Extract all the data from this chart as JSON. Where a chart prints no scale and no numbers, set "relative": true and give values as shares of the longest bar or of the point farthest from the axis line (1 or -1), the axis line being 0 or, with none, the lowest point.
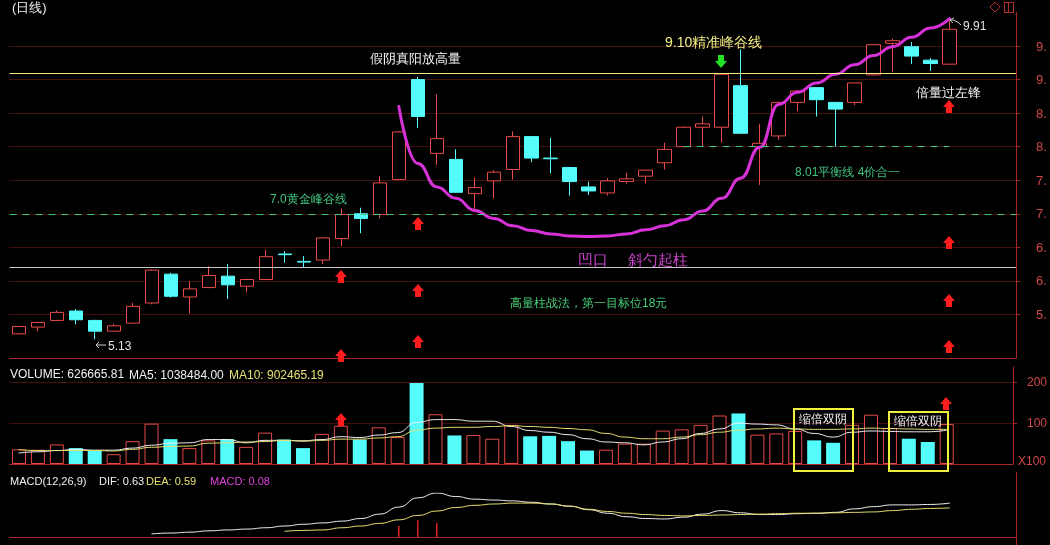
{
  "chart_data": [
    {
      "type": "candlestick",
      "title": "(日线)",
      "categories": [
        null,
        null,
        null,
        null,
        null,
        null,
        null,
        null,
        null,
        null,
        null,
        null,
        null,
        null,
        null,
        null,
        null,
        null,
        null,
        null,
        null,
        null,
        null,
        null,
        null,
        null,
        null,
        null,
        null,
        null,
        null,
        null,
        null,
        null,
        null,
        null,
        null,
        null,
        null,
        null,
        null,
        null,
        null,
        null,
        null,
        null,
        null,
        null,
        null,
        null
      ],
      "ohlc": [
        [
          5.21,
          5.33,
          5.2,
          5.32
        ],
        [
          5.31,
          5.39,
          5.25,
          5.38
        ],
        [
          5.41,
          5.56,
          5.4,
          5.53
        ],
        [
          5.55,
          5.58,
          5.35,
          5.42
        ],
        [
          5.41,
          5.42,
          5.13,
          5.25
        ],
        [
          5.25,
          5.36,
          5.24,
          5.33
        ],
        [
          5.37,
          5.67,
          5.36,
          5.62
        ],
        [
          5.67,
          6.17,
          5.65,
          6.16
        ],
        [
          6.1,
          6.12,
          5.75,
          5.77
        ],
        [
          5.76,
          5.99,
          5.51,
          5.88
        ],
        [
          5.9,
          6.22,
          5.89,
          6.08
        ],
        [
          6.07,
          6.25,
          5.73,
          5.94
        ],
        [
          5.92,
          6.03,
          5.83,
          6.02
        ],
        [
          6.02,
          6.46,
          6.01,
          6.36
        ],
        [
          6.4,
          6.44,
          6.27,
          6.39
        ],
        [
          6.29,
          6.37,
          6.2,
          6.28
        ],
        [
          6.31,
          6.65,
          6.25,
          6.64
        ],
        [
          6.63,
          7.08,
          6.52,
          6.99
        ],
        [
          7.0,
          7.09,
          6.71,
          6.93
        ],
        [
          6.99,
          7.56,
          6.93,
          7.46
        ],
        [
          7.51,
          8.23,
          7.5,
          8.22
        ],
        [
          9.0,
          9.04,
          8.28,
          8.45
        ],
        [
          7.9,
          8.78,
          7.73,
          8.12
        ],
        [
          7.81,
          7.96,
          7.31,
          7.32
        ],
        [
          7.3,
          7.54,
          7.06,
          7.39
        ],
        [
          7.49,
          7.65,
          7.23,
          7.62
        ],
        [
          7.66,
          8.23,
          7.51,
          8.15
        ],
        [
          8.15,
          8.16,
          7.77,
          7.83
        ],
        [
          7.83,
          8.13,
          7.6,
          7.82
        ],
        [
          7.69,
          7.7,
          7.27,
          7.48
        ],
        [
          7.4,
          7.48,
          7.28,
          7.34
        ],
        [
          7.31,
          7.53,
          7.27,
          7.49
        ],
        [
          7.48,
          7.61,
          7.45,
          7.52
        ],
        [
          7.56,
          7.66,
          7.45,
          7.65
        ],
        [
          7.76,
          8.06,
          7.66,
          7.96
        ],
        [
          8.0,
          8.3,
          7.99,
          8.29
        ],
        [
          8.29,
          8.45,
          8.01,
          8.34
        ],
        [
          8.29,
          9.1,
          8.06,
          9.08
        ],
        [
          8.91,
          9.45,
          8.2,
          8.2
        ],
        [
          8.0,
          8.34,
          7.43,
          8.05
        ],
        [
          8.16,
          8.67,
          8.1,
          8.66
        ],
        [
          8.66,
          8.84,
          8.53,
          8.83
        ],
        [
          8.88,
          8.88,
          8.45,
          8.7
        ],
        [
          8.66,
          8.66,
          8.0,
          8.56
        ],
        [
          8.66,
          8.96,
          8.62,
          8.95
        ],
        [
          9.07,
          9.53,
          9.06,
          9.52
        ],
        [
          9.54,
          9.61,
          9.11,
          9.58
        ],
        [
          9.49,
          9.56,
          9.23,
          9.35
        ],
        [
          9.29,
          9.32,
          9.13,
          9.24
        ],
        [
          9.23,
          9.91,
          9.22,
          9.75
        ]
      ],
      "colors": [
        "#e64a4a",
        "#e64a4a",
        "#e64a4a",
        "#54fcfc",
        "#54fcfc",
        "#e64a4a",
        "#e64a4a",
        "#e64a4a",
        "#54fcfc",
        "#e64a4a",
        "#e64a4a",
        "#54fcfc",
        "#e64a4a",
        "#e64a4a",
        "#54fcfc",
        "#54fcfc",
        "#e64a4a",
        "#e64a4a",
        "#54fcfc",
        "#e64a4a",
        "#e64a4a",
        "#54fcfc",
        "#e64a4a",
        "#54fcfc",
        "#e64a4a",
        "#e64a4a",
        "#e64a4a",
        "#54fcfc",
        "#54fcfc",
        "#54fcfc",
        "#54fcfc",
        "#e64a4a",
        "#e64a4a",
        "#e64a4a",
        "#e64a4a",
        "#e64a4a",
        "#e64a4a",
        "#e64a4a",
        "#54fcfc",
        "#e64a4a",
        "#e64a4a",
        "#e64a4a",
        "#54fcfc",
        "#54fcfc",
        "#e64a4a",
        "#e64a4a",
        "#e64a4a",
        "#54fcfc",
        "#54fcfc",
        "#e64a4a"
      ],
      "series": [
        {
          "type": "line",
          "color": "#d632d8",
          "values": [
            null,
            null,
            null,
            null,
            null,
            null,
            null,
            null,
            null,
            null,
            null,
            null,
            null,
            null,
            null,
            null,
            null,
            null,
            null,
            null,
            8.6,
            7.75,
            7.4,
            7.23,
            7.05,
            6.93,
            6.82,
            6.75,
            6.7,
            6.67,
            6.66,
            6.67,
            6.7,
            6.76,
            6.82,
            6.91,
            7.04,
            7.23,
            7.53,
            7.99,
            8.63,
            8.81,
            8.95,
            9.08,
            9.22,
            9.36,
            9.49,
            9.63,
            9.77,
            9.91
          ]
        }
      ],
      "ylim": [
        4.85,
        10.0
      ],
      "yticks": [
        {
          "value": 5.5,
          "label": "5."
        },
        {
          "value": 6,
          "label": "6."
        },
        {
          "value": 6.5,
          "label": "6."
        },
        {
          "value": 7,
          "label": "7."
        },
        {
          "value": 7.5,
          "label": "7."
        },
        {
          "value": 8,
          "label": "8."
        },
        {
          "value": 8.5,
          "label": "8."
        },
        {
          "value": 9,
          "label": "9."
        },
        {
          "value": 9.5,
          "label": "9."
        }
      ],
      "grid": "y",
      "ref_lines": [
        {
          "axis": "y",
          "value": 9.1,
          "label": "9.10精准峰谷线",
          "color": "#f2ee82",
          "line_style": "solid"
        },
        {
          "axis": "y",
          "value": 8.01,
          "label": "8.01平衡线 4价合一",
          "color": "#40c47e",
          "line_style": "dashed"
        },
        {
          "axis": "y",
          "value": 7.0,
          "label": "7.0黄金峰谷线",
          "color": "#40c47e",
          "line_style": "dashed"
        },
        {
          "axis": "y",
          "value": 6.2,
          "color": "#c8c8c8",
          "line_style": "solid"
        }
      ],
      "annotations": [
        "假阴真阳放高量",
        "凹口",
        "斜勺起柱",
        "高量柱战法，第一目标位18元",
        "倍量过左锋",
        "9.91",
        "5.13"
      ]
    },
    {
      "type": "bar",
      "title": "VOLUME: 626665.81",
      "categories": [
        null,
        null,
        null,
        null,
        null,
        null,
        null,
        null,
        null,
        null,
        null,
        null,
        null,
        null,
        null,
        null,
        null,
        null,
        null,
        null,
        null,
        null,
        null,
        null,
        null,
        null,
        null,
        null,
        null,
        null,
        null,
        null,
        null,
        null,
        null,
        null,
        null,
        null,
        null,
        null,
        null,
        null,
        null,
        null,
        null,
        null,
        null,
        null,
        null,
        null
      ],
      "series": [
        {
          "values": [
            36,
            35,
            48,
            39,
            33,
            24,
            56,
            99,
            61,
            39,
            58,
            61,
            42,
            77,
            60,
            39,
            74,
            94,
            60,
            90,
            66,
            199,
            122,
            70,
            71,
            62,
            96,
            68,
            69,
            56,
            33,
            35,
            50,
            50,
            82,
            85,
            96,
            119,
            124,
            72,
            75,
            81,
            58,
            52,
            96,
            121,
            88,
            62,
            54,
            98
          ],
          "colors": [
            "#e64a4a",
            "#e64a4a",
            "#e64a4a",
            "#54fcfc",
            "#54fcfc",
            "#e64a4a",
            "#e64a4a",
            "#e64a4a",
            "#54fcfc",
            "#e64a4a",
            "#e64a4a",
            "#54fcfc",
            "#e64a4a",
            "#e64a4a",
            "#54fcfc",
            "#54fcfc",
            "#e64a4a",
            "#e64a4a",
            "#54fcfc",
            "#e64a4a",
            "#e64a4a",
            "#54fcfc",
            "#e64a4a",
            "#54fcfc",
            "#e64a4a",
            "#e64a4a",
            "#e64a4a",
            "#54fcfc",
            "#54fcfc",
            "#54fcfc",
            "#54fcfc",
            "#e64a4a",
            "#e64a4a",
            "#e64a4a",
            "#e64a4a",
            "#e64a4a",
            "#e64a4a",
            "#e64a4a",
            "#54fcfc",
            "#e64a4a",
            "#e64a4a",
            "#e64a4a",
            "#54fcfc",
            "#54fcfc",
            "#e64a4a",
            "#e64a4a",
            "#e64a4a",
            "#54fcfc",
            "#54fcfc",
            "#e64a4a"
          ]
        },
        {
          "type": "line",
          "name": "MA5: 1038484.00",
          "color": "#f0f0f0",
          "values": [
            27,
            30,
            33,
            36,
            34,
            34,
            39,
            46,
            51,
            52,
            60,
            60,
            52,
            58,
            58,
            57,
            60,
            67,
            65,
            71,
            77,
            102,
            109,
            109,
            105,
            105,
            92,
            82,
            78,
            72,
            62,
            54,
            52,
            47,
            54,
            62,
            75,
            86,
            100,
            98,
            96,
            86,
            75,
            66,
            78,
            81,
            80,
            79,
            79,
            83
          ]
        },
        {
          "type": "line",
          "name": "MA10: 902465.19",
          "color": "#e6e070",
          "values": [
            35,
            33,
            33,
            33,
            33,
            32,
            36,
            41,
            43,
            44,
            51,
            52,
            54,
            55,
            58,
            56,
            58,
            61,
            61,
            64,
            67,
            83,
            88,
            90,
            90,
            92,
            94,
            92,
            90,
            87,
            84,
            75,
            66,
            62,
            62,
            66,
            72,
            78,
            83,
            86,
            88,
            86,
            85,
            85,
            86,
            88,
            87,
            86,
            85,
            85
          ]
        }
      ],
      "ylim": [
        0,
        238
      ],
      "yticks": [
        100,
        200
      ],
      "ylabel": "X100",
      "grid": "y",
      "annotations": [
        "缩倍双阴",
        "缩倍双阴"
      ]
    },
    {
      "type": "line",
      "title": "MACD(12,26,9)",
      "relative": true,
      "categories": [
        null,
        null,
        null,
        null,
        null,
        null,
        null,
        null,
        null,
        null,
        null,
        null,
        null,
        null,
        null,
        null,
        null,
        null,
        null,
        null,
        null,
        null,
        null,
        null,
        null,
        null,
        null,
        null,
        null,
        null,
        null,
        null,
        null,
        null,
        null,
        null,
        null,
        null,
        null,
        null,
        null,
        null,
        null,
        null,
        null,
        null,
        null,
        null,
        null,
        null
      ],
      "series": [
        {
          "name": "DIF: 0.63",
          "color": "#f0f0f0",
          "values": [
            null,
            null,
            null,
            null,
            null,
            null,
            null,
            0.07,
            0.09,
            0.11,
            0.14,
            0.16,
            0.18,
            0.21,
            0.25,
            0.29,
            0.32,
            0.36,
            0.42,
            0.52,
            0.68,
            0.89,
            1.0,
            0.92,
            0.86,
            0.84,
            0.82,
            0.79,
            0.75,
            0.7,
            0.62,
            0.54,
            0.46,
            0.42,
            0.41,
            0.45,
            0.52,
            0.6,
            0.55,
            0.51,
            0.51,
            0.53,
            0.54,
            0.56,
            0.64,
            0.69,
            0.73,
            0.73,
            0.74,
            0.77
          ]
        },
        {
          "name": "DEA: 0.59",
          "color": "#e6e070",
          "values": [
            null,
            null,
            null,
            null,
            null,
            null,
            null,
            null,
            null,
            null,
            null,
            null,
            null,
            null,
            0.13,
            0.15,
            0.16,
            0.21,
            0.25,
            0.31,
            0.39,
            0.49,
            0.59,
            0.67,
            0.72,
            0.75,
            0.77,
            0.77,
            0.75,
            0.7,
            0.63,
            0.58,
            0.54,
            0.51,
            0.49,
            0.48,
            0.49,
            0.5,
            0.51,
            0.52,
            0.53,
            0.54,
            0.54,
            0.55,
            0.56,
            0.57,
            0.6,
            0.63,
            0.65,
            0.66
          ]
        },
        {
          "type": "bar",
          "color": "#e02020",
          "values": [
            null,
            null,
            null,
            null,
            null,
            null,
            null,
            null,
            null,
            null,
            null,
            null,
            null,
            null,
            null,
            null,
            null,
            null,
            null,
            null,
            0.25,
            0.38,
            0.32,
            null,
            null,
            null,
            null,
            null,
            null,
            null,
            null,
            null,
            null,
            null,
            null,
            null,
            null,
            null,
            null,
            null,
            null,
            null,
            null,
            null,
            null,
            null,
            null,
            null,
            null,
            null
          ]
        }
      ],
      "annotations": [
        "MACD: 0.08"
      ]
    }
  ]
}
